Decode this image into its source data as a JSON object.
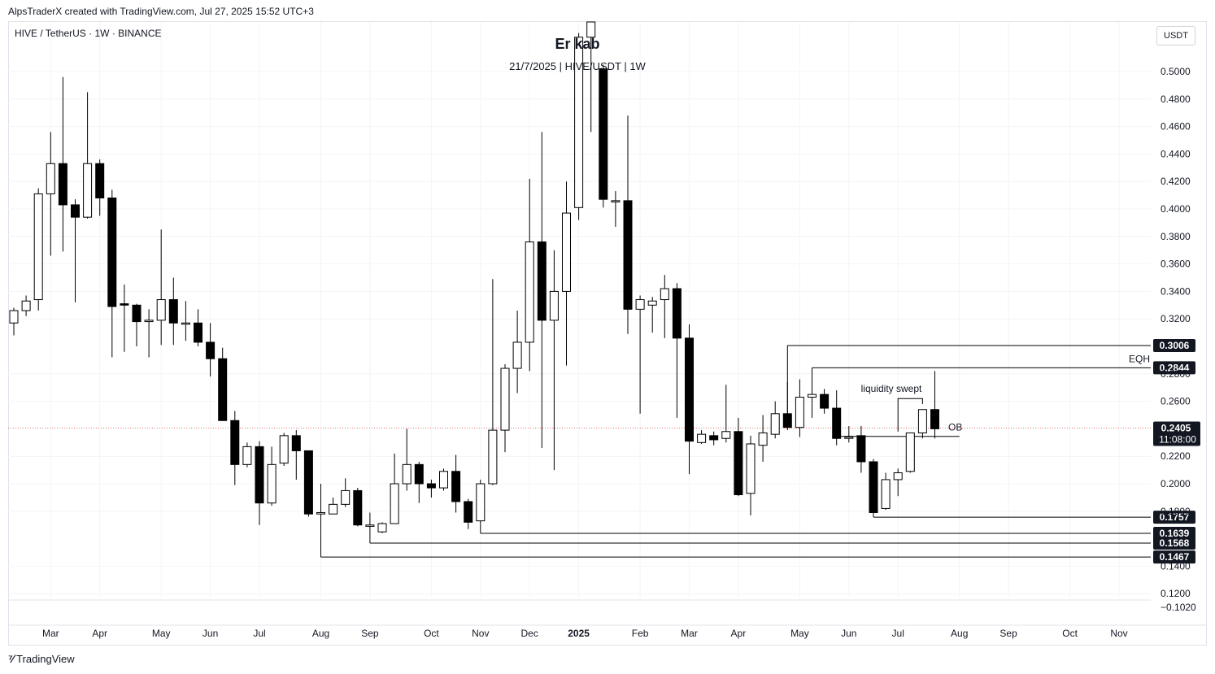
{
  "header": {
    "created_by": "AlpsTraderX created with TradingView.com, Jul 27, 2025 15:52 UTC+3"
  },
  "symbol": "HIVE / TetherUS · 1W · BINANCE",
  "unit": "USDT",
  "overlay": {
    "title": "Er kab",
    "subtitle": "21/7/2025 | HIVE/USDT | 1W"
  },
  "brand": {
    "icon": "tradingview-logo-icon",
    "name": "TradingView"
  },
  "chart_data": {
    "type": "candlestick",
    "y_ticks": [
      "0.5000",
      "0.4800",
      "0.4600",
      "0.4400",
      "0.4200",
      "0.4000",
      "0.3800",
      "0.3600",
      "0.3400",
      "0.3200",
      "0.2800",
      "0.2600",
      "0.2200",
      "0.2000",
      "0.1800",
      "0.1400",
      "0.1200"
    ],
    "y_extra_tick": "−0.1020",
    "ylim": [
      0.115,
      0.53
    ],
    "x_ticks": [
      {
        "label": "Mar",
        "bar": 3
      },
      {
        "label": "Apr",
        "bar": 7
      },
      {
        "label": "May",
        "bar": 12
      },
      {
        "label": "Jun",
        "bar": 16
      },
      {
        "label": "Jul",
        "bar": 20
      },
      {
        "label": "Aug",
        "bar": 25
      },
      {
        "label": "Sep",
        "bar": 29
      },
      {
        "label": "Oct",
        "bar": 34
      },
      {
        "label": "Nov",
        "bar": 38
      },
      {
        "label": "Dec",
        "bar": 42
      },
      {
        "label": "2025",
        "bar": 46,
        "bold": true
      },
      {
        "label": "Feb",
        "bar": 51
      },
      {
        "label": "Mar",
        "bar": 55
      },
      {
        "label": "Apr",
        "bar": 59
      },
      {
        "label": "May",
        "bar": 64
      },
      {
        "label": "Jun",
        "bar": 68
      },
      {
        "label": "Jul",
        "bar": 72
      },
      {
        "label": "Aug",
        "bar": 77
      },
      {
        "label": "Sep",
        "bar": 81
      },
      {
        "label": "Oct",
        "bar": 86
      },
      {
        "label": "Nov",
        "bar": 90
      }
    ],
    "candles": [
      [
        0.317,
        0.326,
        0.308,
        0.328
      ],
      [
        0.326,
        0.333,
        0.322,
        0.337
      ],
      [
        0.334,
        0.411,
        0.326,
        0.415
      ],
      [
        0.411,
        0.433,
        0.366,
        0.456
      ],
      [
        0.433,
        0.403,
        0.369,
        0.496
      ],
      [
        0.403,
        0.394,
        0.332,
        0.407
      ],
      [
        0.394,
        0.433,
        0.393,
        0.485
      ],
      [
        0.433,
        0.408,
        0.395,
        0.436
      ],
      [
        0.408,
        0.329,
        0.292,
        0.414
      ],
      [
        0.331,
        0.33,
        0.296,
        0.345
      ],
      [
        0.33,
        0.318,
        0.3,
        0.331
      ],
      [
        0.318,
        0.319,
        0.292,
        0.327
      ],
      [
        0.319,
        0.334,
        0.301,
        0.385
      ],
      [
        0.334,
        0.317,
        0.301,
        0.35
      ],
      [
        0.317,
        0.317,
        0.304,
        0.333
      ],
      [
        0.317,
        0.303,
        0.3,
        0.327
      ],
      [
        0.303,
        0.291,
        0.278,
        0.317
      ],
      [
        0.291,
        0.246,
        0.246,
        0.299
      ],
      [
        0.246,
        0.214,
        0.199,
        0.253
      ],
      [
        0.214,
        0.227,
        0.212,
        0.23
      ],
      [
        0.227,
        0.186,
        0.17,
        0.231
      ],
      [
        0.186,
        0.214,
        0.184,
        0.227
      ],
      [
        0.215,
        0.235,
        0.213,
        0.237
      ],
      [
        0.235,
        0.224,
        0.203,
        0.239
      ],
      [
        0.224,
        0.178,
        0.176,
        0.224
      ],
      [
        0.178,
        0.179,
        0.164,
        0.2
      ],
      [
        0.178,
        0.185,
        0.178,
        0.19
      ],
      [
        0.185,
        0.195,
        0.183,
        0.204
      ],
      [
        0.195,
        0.17,
        0.169,
        0.197
      ],
      [
        0.169,
        0.17,
        0.164,
        0.179
      ],
      [
        0.165,
        0.171,
        0.164,
        0.172
      ],
      [
        0.171,
        0.2,
        0.171,
        0.222
      ],
      [
        0.2,
        0.214,
        0.195,
        0.24
      ],
      [
        0.214,
        0.2,
        0.186,
        0.216
      ],
      [
        0.2,
        0.197,
        0.19,
        0.203
      ],
      [
        0.197,
        0.209,
        0.195,
        0.211
      ],
      [
        0.209,
        0.187,
        0.179,
        0.221
      ],
      [
        0.187,
        0.172,
        0.167,
        0.189
      ],
      [
        0.173,
        0.2,
        0.17,
        0.203
      ],
      [
        0.2,
        0.239,
        0.199,
        0.349
      ],
      [
        0.239,
        0.284,
        0.223,
        0.287
      ],
      [
        0.284,
        0.303,
        0.266,
        0.326
      ],
      [
        0.303,
        0.376,
        0.282,
        0.422
      ],
      [
        0.376,
        0.319,
        0.226,
        0.456
      ],
      [
        0.319,
        0.34,
        0.21,
        0.37
      ],
      [
        0.34,
        0.397,
        0.286,
        0.42
      ],
      [
        0.401,
        0.525,
        0.392,
        0.528
      ],
      [
        0.525,
        0.54,
        0.456,
        0.55
      ],
      [
        0.502,
        0.407,
        0.401,
        0.505
      ],
      [
        0.406,
        0.406,
        0.387,
        0.413
      ],
      [
        0.406,
        0.327,
        0.309,
        0.468
      ],
      [
        0.327,
        0.334,
        0.251,
        0.337
      ],
      [
        0.33,
        0.333,
        0.31,
        0.336
      ],
      [
        0.334,
        0.342,
        0.306,
        0.352
      ],
      [
        0.342,
        0.306,
        0.248,
        0.346
      ],
      [
        0.306,
        0.231,
        0.207,
        0.316
      ],
      [
        0.23,
        0.236,
        0.229,
        0.239
      ],
      [
        0.235,
        0.232,
        0.228,
        0.238
      ],
      [
        0.233,
        0.238,
        0.23,
        0.272
      ],
      [
        0.238,
        0.192,
        0.191,
        0.248
      ],
      [
        0.193,
        0.229,
        0.177,
        0.235
      ],
      [
        0.228,
        0.237,
        0.216,
        0.25
      ],
      [
        0.236,
        0.251,
        0.233,
        0.26
      ],
      [
        0.251,
        0.241,
        0.239,
        0.274
      ],
      [
        0.241,
        0.263,
        0.234,
        0.276
      ],
      [
        0.263,
        0.265,
        0.248,
        0.266
      ],
      [
        0.265,
        0.255,
        0.251,
        0.269
      ],
      [
        0.255,
        0.233,
        0.228,
        0.268
      ],
      [
        0.233,
        0.234,
        0.23,
        0.242
      ],
      [
        0.235,
        0.216,
        0.208,
        0.242
      ],
      [
        0.216,
        0.179,
        0.179,
        0.218
      ],
      [
        0.182,
        0.203,
        0.181,
        0.208
      ],
      [
        0.203,
        0.208,
        0.191,
        0.211
      ],
      [
        0.209,
        0.237,
        0.208,
        0.237
      ],
      [
        0.237,
        0.254,
        0.233,
        0.254
      ],
      [
        0.254,
        0.24,
        0.233,
        0.282
      ]
    ],
    "levels": [
      {
        "price": 0.3006,
        "label": "0.3006",
        "from_bar": 63
      },
      {
        "price": 0.2844,
        "label": "0.2844",
        "from_bar": 65
      },
      {
        "price": 0.1757,
        "label": "0.1757",
        "from_bar": 70
      },
      {
        "price": 0.1639,
        "label": "0.1639",
        "from_bar": 38
      },
      {
        "price": 0.1568,
        "label": "0.1568",
        "from_bar": 29
      },
      {
        "price": 0.1467,
        "label": "0.1467",
        "from_bar": 25
      }
    ],
    "ob_line": {
      "price": 0.2345,
      "from_bar": 67,
      "to_bar": 77
    },
    "sweep": {
      "price": 0.262,
      "from_bar": 72,
      "to_bar": 74
    },
    "annotations": {
      "eqh": "EQH",
      "swept": "liquidity swept",
      "ob": "OB"
    },
    "last_price": {
      "value": 0.2405,
      "label": "0.2405",
      "countdown": "11:08:00"
    }
  }
}
